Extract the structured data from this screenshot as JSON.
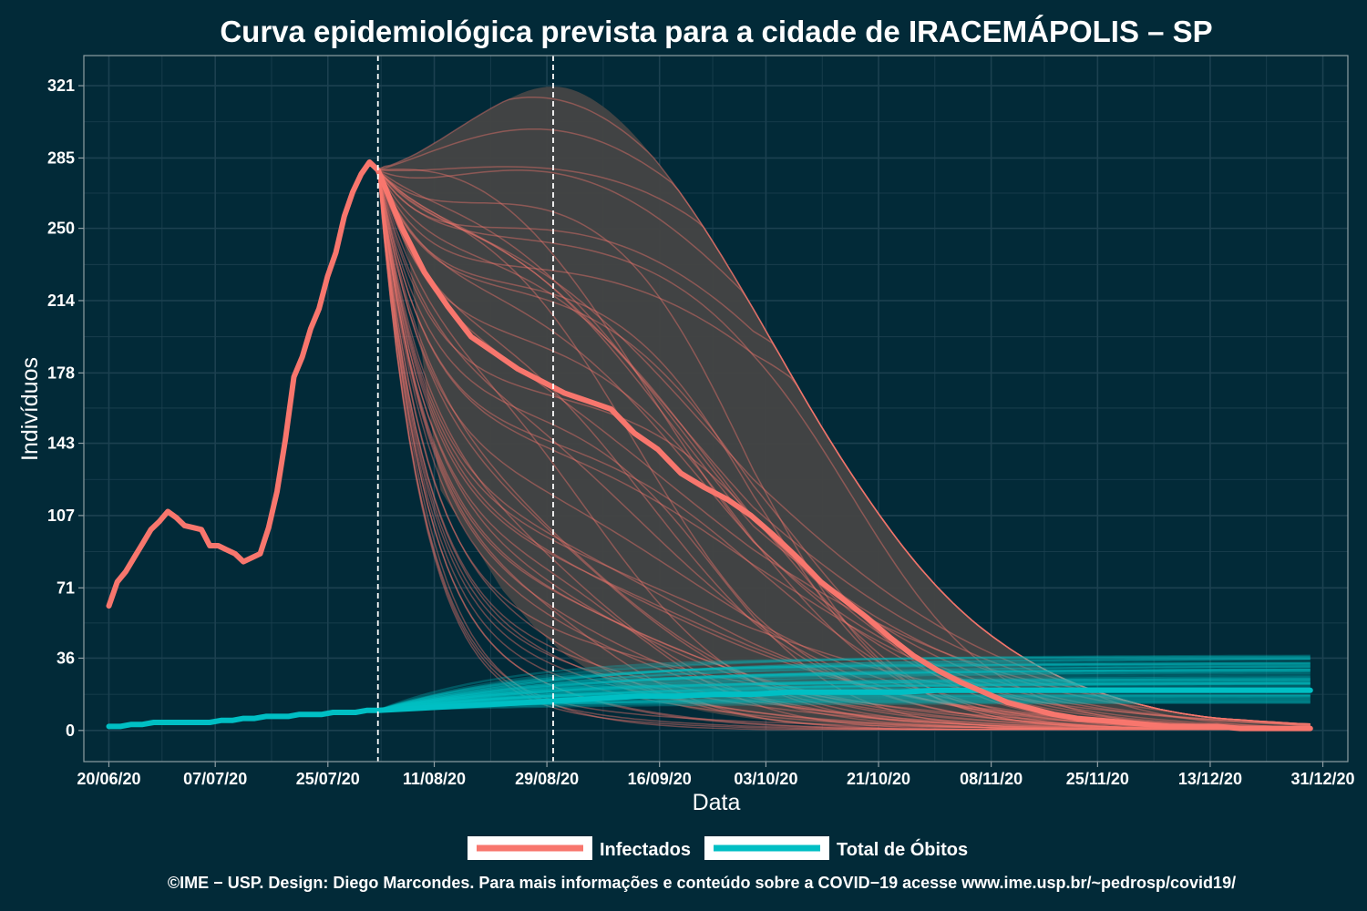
{
  "chart_data": {
    "type": "line",
    "title": "Curva epidemiológica prevista para a cidade de IRACEMÁPOLIS – SP",
    "xlabel": "Data",
    "ylabel": "Indivíduos",
    "x_start": "20/06/20",
    "x_end": "29/12/20",
    "x_range": [
      "16/06/20",
      "04/01/21"
    ],
    "ylim": [
      -15.5,
      336
    ],
    "x_ticks": [
      "20/06/20",
      "07/07/20",
      "25/07/20",
      "11/08/20",
      "29/08/20",
      "16/09/20",
      "03/10/20",
      "21/10/20",
      "08/11/20",
      "25/11/20",
      "13/12/20",
      "31/12/20"
    ],
    "y_ticks": [
      0,
      36,
      71,
      107,
      143,
      178,
      214,
      250,
      285,
      321
    ],
    "vertical_lines": [
      "02/08/20",
      "30/08/20"
    ],
    "grid": true,
    "legend_position": "bottom",
    "series": [
      {
        "name": "Infectados",
        "color": "#F8766D",
        "observed": [
          62,
          74,
          79,
          86,
          93,
          100,
          104,
          109,
          106,
          102,
          101,
          100,
          92,
          92,
          90,
          88,
          84,
          86,
          88,
          101,
          119,
          145,
          176,
          186,
          200,
          210,
          226,
          238,
          256,
          268,
          277,
          283,
          279
        ],
        "median_forecast": [
          279,
          251,
          228,
          211,
          196,
          188,
          180,
          174,
          168,
          164,
          160,
          148,
          140,
          128,
          121,
          115,
          107,
          97,
          86,
          74,
          65,
          56,
          46,
          37,
          30,
          24,
          19,
          14,
          11,
          8,
          6,
          5,
          4,
          3,
          2,
          2,
          2,
          1,
          1,
          1,
          1
        ],
        "band_upper": [
          279,
          285,
          294,
          304,
          313,
          320,
          321,
          314,
          301,
          283,
          262,
          238,
          212,
          185,
          158,
          133,
          110,
          89,
          71,
          56,
          44,
          34,
          26,
          20,
          15,
          11,
          8,
          6,
          5,
          4,
          3
        ],
        "band_lower": [
          279,
          235,
          120,
          95,
          70,
          52,
          38,
          28,
          20,
          15,
          11,
          8,
          6,
          4,
          3,
          3,
          2,
          2,
          1,
          1,
          1,
          1,
          1,
          1,
          1,
          1,
          1,
          1,
          1,
          1,
          1
        ]
      },
      {
        "name": "Total de Óbitos",
        "color": "#00BFC4",
        "observed": [
          2,
          2,
          3,
          3,
          4,
          4,
          4,
          4,
          4,
          4,
          5,
          5,
          6,
          6,
          7,
          7,
          7,
          8,
          8,
          8,
          9,
          9,
          9,
          10,
          10
        ],
        "median_forecast": [
          10,
          11,
          12,
          13,
          14,
          15,
          16,
          17,
          17,
          18,
          18,
          19,
          19,
          19,
          19,
          20,
          20,
          20,
          20,
          20,
          20,
          20,
          20,
          20,
          20,
          20
        ],
        "forecast_range_end": [
          13,
          38
        ]
      }
    ]
  },
  "legend": {
    "items": [
      {
        "label": "Infectados",
        "color": "#F8766D"
      },
      {
        "label": "Total de Óbitos",
        "color": "#00BFC4"
      }
    ]
  },
  "caption": "©IME − USP. Design: Diego Marcondes. Para mais informações e conteúdo sobre a COVID−19 acesse www.ime.usp.br/~pedrosp/covid19/",
  "colors": {
    "background": "#022a38",
    "band": "#444444",
    "grid": "#1c4150",
    "axis": "#8f9ea4"
  }
}
